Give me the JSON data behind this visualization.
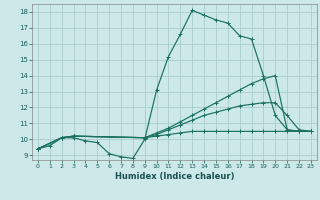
{
  "xlabel": "Humidex (Indice chaleur)",
  "bg_color": "#cce8e8",
  "grid_color": "#aacccc",
  "line_color": "#1a7060",
  "xlim": [
    -0.5,
    23.5
  ],
  "ylim": [
    8.7,
    18.5
  ],
  "xticks": [
    0,
    1,
    2,
    3,
    4,
    5,
    6,
    7,
    8,
    9,
    10,
    11,
    12,
    13,
    14,
    15,
    16,
    17,
    18,
    19,
    20,
    21,
    22,
    23
  ],
  "yticks": [
    9,
    10,
    11,
    12,
    13,
    14,
    15,
    16,
    17,
    18
  ],
  "lines": [
    {
      "x": [
        0,
        1,
        2,
        3,
        4,
        5,
        6,
        7,
        8,
        9,
        10,
        11,
        12,
        13,
        14,
        15,
        16,
        17,
        18,
        19,
        20,
        21,
        22,
        23
      ],
      "y": [
        9.4,
        9.6,
        10.1,
        10.1,
        9.9,
        9.8,
        9.1,
        8.9,
        8.8,
        10.0,
        13.1,
        15.2,
        16.6,
        18.1,
        17.8,
        17.5,
        17.3,
        16.5,
        16.3,
        14.0,
        11.5,
        10.6,
        10.5,
        10.5
      ]
    },
    {
      "x": [
        0,
        2,
        3,
        9,
        10,
        11,
        12,
        13,
        14,
        15,
        16,
        17,
        18,
        19,
        20,
        21,
        22,
        23
      ],
      "y": [
        9.4,
        10.1,
        10.2,
        10.1,
        10.4,
        10.7,
        11.1,
        11.5,
        11.9,
        12.3,
        12.7,
        13.1,
        13.5,
        13.8,
        14.0,
        10.6,
        10.5,
        10.5
      ]
    },
    {
      "x": [
        0,
        2,
        3,
        9,
        10,
        11,
        12,
        13,
        14,
        15,
        16,
        17,
        18,
        19,
        20,
        21,
        22,
        23
      ],
      "y": [
        9.4,
        10.1,
        10.2,
        10.1,
        10.3,
        10.6,
        10.9,
        11.2,
        11.5,
        11.7,
        11.9,
        12.1,
        12.2,
        12.3,
        12.3,
        11.5,
        10.6,
        10.5
      ]
    },
    {
      "x": [
        0,
        2,
        3,
        9,
        10,
        11,
        12,
        13,
        14,
        15,
        16,
        17,
        18,
        19,
        20,
        21,
        22,
        23
      ],
      "y": [
        9.4,
        10.1,
        10.2,
        10.1,
        10.2,
        10.3,
        10.4,
        10.5,
        10.5,
        10.5,
        10.5,
        10.5,
        10.5,
        10.5,
        10.5,
        10.5,
        10.5,
        10.5
      ]
    }
  ]
}
